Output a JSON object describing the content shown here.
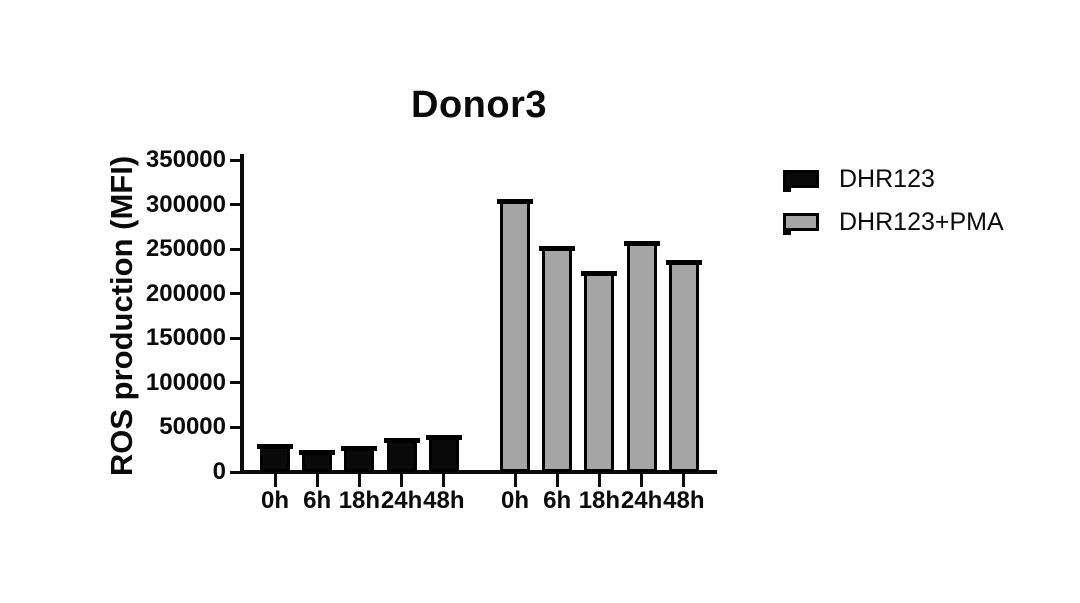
{
  "chart_data": {
    "type": "bar",
    "title": "Donor3",
    "ylabel": "ROS production (MFI)",
    "xlabel": "",
    "categories": [
      "0h",
      "6h",
      "18h",
      "24h",
      "48h"
    ],
    "series": [
      {
        "name": "DHR123",
        "color": "#0a0a0a",
        "values": [
          31000,
          25000,
          29000,
          38000,
          42000
        ]
      },
      {
        "name": "DHR123+PMA",
        "color": "#a5a5a5",
        "values": [
          306000,
          254000,
          225000,
          259000,
          238000
        ]
      }
    ],
    "ylim": [
      0,
      350000
    ],
    "yticks": [
      0,
      50000,
      100000,
      150000,
      200000,
      250000,
      300000,
      350000
    ],
    "grid": false,
    "legend_position": "right",
    "bar_outline_color": "#000000",
    "background": "#ffffff"
  }
}
